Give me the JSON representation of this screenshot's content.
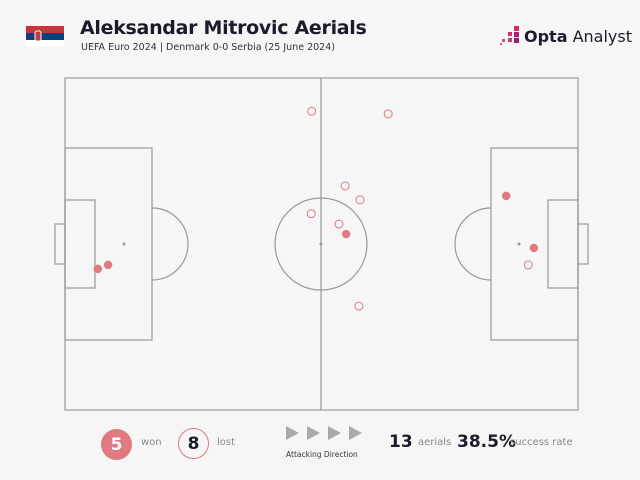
{
  "header": {
    "title": "Aleksandar Mitrovic Aerials",
    "subtitle": "UEFA Euro 2024 | Denmark 0-0 Serbia (25 June 2024)",
    "brand_bold": "Opta",
    "brand_light": "Analyst",
    "flag": "serbia-flag-icon"
  },
  "colors": {
    "won": "#e07a80",
    "lost_stroke": "#e07a80",
    "pitch_line": "#999999",
    "text": "#1b1b2b"
  },
  "chart_data": {
    "type": "scatter",
    "xlim": [
      0,
      100
    ],
    "ylim": [
      0,
      100
    ],
    "series": [
      {
        "name": "won",
        "filled": true,
        "points": [
          [
            6.4,
            57.5
          ],
          [
            8.4,
            56.3
          ],
          [
            54.8,
            47.0
          ],
          [
            86.0,
            35.5
          ],
          [
            91.4,
            51.2
          ]
        ]
      },
      {
        "name": "lost",
        "filled": false,
        "points": [
          [
            48.1,
            10.0
          ],
          [
            63.0,
            10.8
          ],
          [
            54.6,
            32.5
          ],
          [
            57.5,
            36.7
          ],
          [
            48.0,
            40.9
          ],
          [
            53.4,
            44.0
          ],
          [
            57.3,
            68.7
          ],
          [
            90.3,
            56.3
          ]
        ]
      }
    ]
  },
  "legend": {
    "won_count": "5",
    "won_label": "won",
    "lost_count": "8",
    "lost_label": "lost",
    "direction_label": "Attacking Direction",
    "aerials_count": "13",
    "aerials_label": "aerials",
    "success_rate": "38.5%",
    "success_label": "success rate"
  }
}
